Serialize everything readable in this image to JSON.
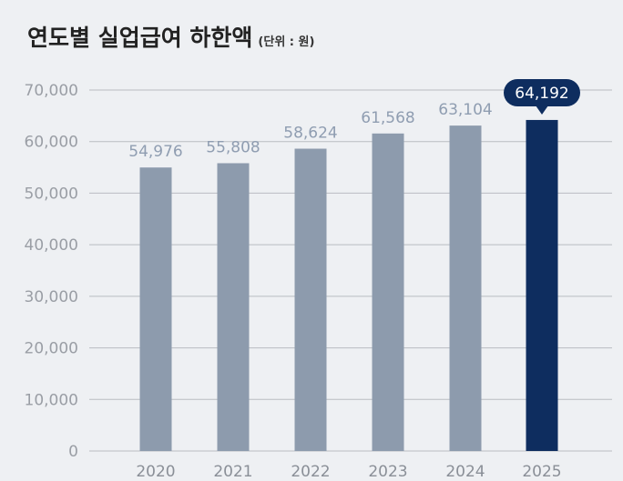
{
  "chart_data": {
    "type": "bar",
    "title": "연도별 실업급여 하한액",
    "unit_label": "(단위 : 원)",
    "categories": [
      "2020",
      "2021",
      "2022",
      "2023",
      "2024",
      "2025"
    ],
    "values": [
      54976,
      55808,
      58624,
      61568,
      63104,
      64192
    ],
    "value_labels": [
      "54,976",
      "55,808",
      "58,624",
      "61,568",
      "63,104",
      "64,192"
    ],
    "highlight_index": 5,
    "ylim": [
      0,
      70000
    ],
    "yticks": [
      0,
      10000,
      20000,
      30000,
      40000,
      50000,
      60000,
      70000
    ],
    "ytick_labels": [
      "0",
      "10,000",
      "20,000",
      "30,000",
      "40,000",
      "50,000",
      "60,000",
      "70,000"
    ],
    "grid": true,
    "xlabel": "",
    "ylabel": "",
    "colors": {
      "bar": "#8d9bad",
      "highlight": "#0e2d5f",
      "grid": "#b9bcc2",
      "background": "#eef0f3"
    }
  }
}
